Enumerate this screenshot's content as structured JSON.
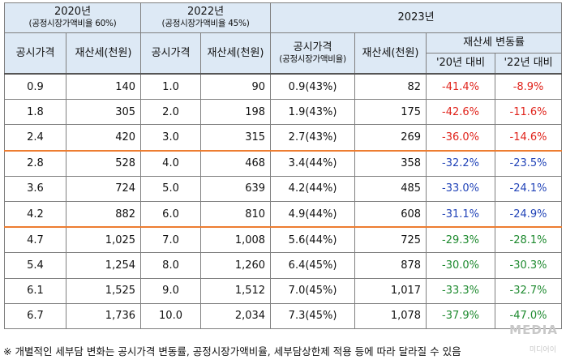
{
  "header": {
    "y2020": {
      "year": "2020년",
      "sub": "(공정시장가액비율 60%)"
    },
    "y2022": {
      "year": "2022년",
      "sub": "(공정시장가액비율 45%)"
    },
    "y2023": {
      "year": "2023년"
    },
    "col_price": "공시가격",
    "col_tax": "재산세(천원)",
    "col_price_2023": "공시가격",
    "col_price_2023_sub": "(공정시장가액비율)",
    "col_tax_2023": "재산세(천원)",
    "col_change": "재산세 변동률",
    "col_vs20": "'20년 대비",
    "col_vs22": "'22년 대비"
  },
  "rows": [
    {
      "p20": "0.9",
      "t20": "140",
      "p22": "1.0",
      "t22": "90",
      "p23": "0.9(43%)",
      "t23": "82",
      "c20": "-41.4%",
      "c20color": "red",
      "c22": "-8.9%",
      "c22color": "red"
    },
    {
      "p20": "1.8",
      "t20": "305",
      "p22": "2.0",
      "t22": "198",
      "p23": "1.9(43%)",
      "t23": "175",
      "c20": "-42.6%",
      "c20color": "red",
      "c22": "-11.6%",
      "c22color": "red"
    },
    {
      "p20": "2.4",
      "t20": "420",
      "p22": "3.0",
      "t22": "315",
      "p23": "2.7(43%)",
      "t23": "269",
      "c20": "-36.0%",
      "c20color": "red",
      "c22": "-14.6%",
      "c22color": "red"
    },
    {
      "p20": "2.8",
      "t20": "528",
      "p22": "4.0",
      "t22": "468",
      "p23": "3.4(44%)",
      "t23": "358",
      "c20": "-32.2%",
      "c20color": "blue",
      "c22": "-23.5%",
      "c22color": "blue"
    },
    {
      "p20": "3.6",
      "t20": "724",
      "p22": "5.0",
      "t22": "639",
      "p23": "4.2(44%)",
      "t23": "485",
      "c20": "-33.0%",
      "c20color": "blue",
      "c22": "-24.1%",
      "c22color": "blue"
    },
    {
      "p20": "4.2",
      "t20": "882",
      "p22": "6.0",
      "t22": "810",
      "p23": "4.9(44%)",
      "t23": "608",
      "c20": "-31.1%",
      "c20color": "blue",
      "c22": "-24.9%",
      "c22color": "blue"
    },
    {
      "p20": "4.7",
      "t20": "1,025",
      "p22": "7.0",
      "t22": "1,008",
      "p23": "5.6(44%)",
      "t23": "725",
      "c20": "-29.3%",
      "c20color": "green",
      "c22": "-28.1%",
      "c22color": "green"
    },
    {
      "p20": "5.4",
      "t20": "1,254",
      "p22": "8.0",
      "t22": "1,260",
      "p23": "6.4(45%)",
      "t23": "878",
      "c20": "-30.0%",
      "c20color": "green",
      "c22": "-30.3%",
      "c22color": "green"
    },
    {
      "p20": "6.1",
      "t20": "1,525",
      "p22": "9.0",
      "t22": "1,512",
      "p23": "7.0(45%)",
      "t23": "1,017",
      "c20": "-33.3%",
      "c20color": "green",
      "c22": "-32.7%",
      "c22color": "green"
    },
    {
      "p20": "6.7",
      "t20": "1,736",
      "p22": "10.0",
      "t22": "2,034",
      "p23": "7.3(45%)",
      "t23": "1,078",
      "c20": "-37.9%",
      "c20color": "green",
      "c22": "-47.0%",
      "c22color": "green"
    }
  ],
  "footnote": "※ 개별적인 세부담 변화는 공시가격 변동률, 공정시장가액비율, 세부담상한제 적용 등에 따라 달라질 수 있음",
  "watermark": "MEDIA",
  "watermark_sub": "미디어이"
}
